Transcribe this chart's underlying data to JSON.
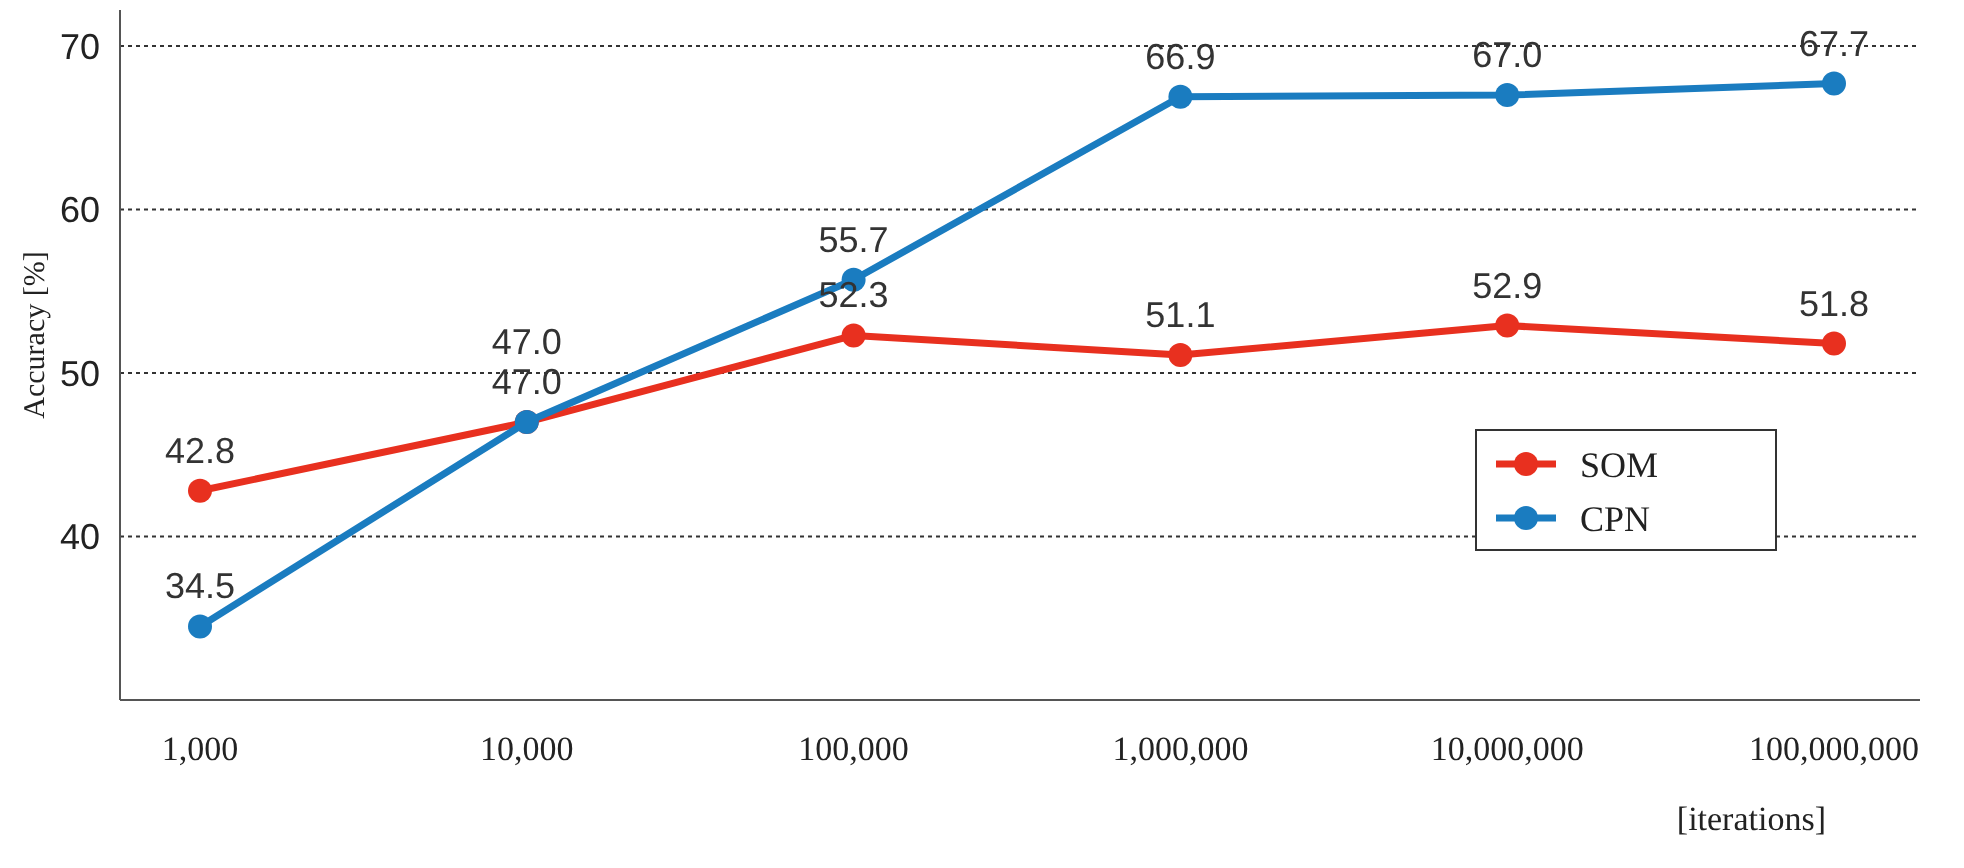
{
  "chart_data": {
    "type": "line",
    "xlabel": "[iterations]",
    "ylabel": "Accuracy [%]",
    "categories": [
      "1,000",
      "10,000",
      "100,000",
      "1,000,000",
      "10,000,000",
      "100,000,000"
    ],
    "series": [
      {
        "name": "SOM",
        "color": "#e8301f",
        "values": [
          42.8,
          47.0,
          52.3,
          51.1,
          52.9,
          51.8
        ],
        "value_labels": [
          "42.8",
          "47.0",
          "52.3",
          "51.1",
          "52.9",
          "51.8"
        ]
      },
      {
        "name": "CPN",
        "color": "#1a7cc0",
        "values": [
          34.5,
          47.0,
          55.7,
          66.9,
          67.0,
          67.7
        ],
        "value_labels": [
          "34.5",
          "47.0",
          "55.7",
          "66.9",
          "67.0",
          "67.7"
        ]
      }
    ],
    "ylim": [
      30,
      70
    ],
    "yticks": [
      40,
      50,
      60,
      70
    ],
    "grid": "y",
    "legend": "right",
    "marker": "circle",
    "line_style": "solid"
  }
}
